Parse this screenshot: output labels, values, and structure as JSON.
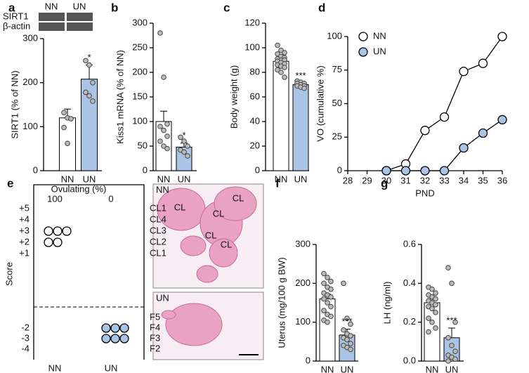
{
  "chart_data": [
    {
      "label": "a",
      "type": "bar",
      "y_label": "SIRT1 (% of NN)",
      "blot_labels": [
        "SIRT1",
        "β-actin"
      ],
      "blot_lanes": [
        "NN",
        "UN"
      ],
      "categories": [
        "NN",
        "UN"
      ],
      "values": [
        120,
        208
      ],
      "errors": [
        20,
        32
      ],
      "colors": [
        "#ffffff",
        "#a9c4e4"
      ],
      "points": [
        [
          132,
          120,
          118,
          98,
          62
        ],
        [
          250,
          240,
          200,
          178,
          170,
          158
        ]
      ],
      "significance": [
        null,
        "*"
      ],
      "ylim": [
        0,
        300
      ],
      "yticks": [
        0,
        100,
        200,
        300
      ]
    },
    {
      "label": "b",
      "type": "bar",
      "y_label": "Kiss1 mRNA (% of NN)",
      "categories": [
        "NN",
        "UN"
      ],
      "values": [
        100,
        48
      ],
      "errors": [
        21,
        8
      ],
      "colors": [
        "#ffffff",
        "#a9c4e4"
      ],
      "points": [
        [
          280,
          190,
          95,
          90,
          82,
          70,
          60,
          50,
          45
        ],
        [
          68,
          60,
          50,
          42,
          38,
          30
        ]
      ],
      "significance": [
        null,
        "*"
      ],
      "ylim": [
        0,
        300
      ],
      "yticks": [
        0,
        50,
        100,
        150,
        200,
        250,
        300
      ]
    },
    {
      "label": "c",
      "type": "bar",
      "y_label": "Body weight (g)",
      "categories": [
        "NN",
        "UN"
      ],
      "values": [
        89,
        70
      ],
      "errors": [
        2,
        1
      ],
      "colors": [
        "#ffffff",
        "#a9c4e4"
      ],
      "points": [
        [
          102,
          98,
          96,
          95,
          93,
          92,
          91,
          90,
          90,
          89,
          88,
          87,
          86,
          85,
          84,
          82,
          80,
          76
        ],
        [
          73,
          72,
          71,
          71,
          70,
          69,
          69,
          68,
          67
        ]
      ],
      "significance": [
        null,
        "***"
      ],
      "ylim": [
        0,
        120
      ],
      "yticks": [
        0,
        20,
        40,
        60,
        80,
        100,
        120
      ]
    },
    {
      "label": "d",
      "type": "line",
      "y_label": "VO (cumulative %)",
      "x_label": "PND",
      "legend": "upper left",
      "x": [
        30,
        31,
        32,
        33,
        34,
        35,
        36
      ],
      "series": [
        {
          "name": "NN",
          "color": "#ffffff",
          "values": [
            0,
            5,
            30,
            40,
            74,
            80,
            100
          ]
        },
        {
          "name": "UN",
          "color": "#a9c4e4",
          "values": [
            0,
            0,
            0,
            0,
            17,
            28,
            38
          ]
        }
      ],
      "xlim": [
        28,
        36
      ],
      "xticks": [
        28,
        29,
        30,
        31,
        32,
        33,
        34,
        35,
        36
      ],
      "ylim": [
        0,
        100
      ],
      "yticks": [
        0,
        25,
        50,
        75,
        100
      ]
    },
    {
      "label": "f",
      "type": "bar",
      "y_label": "Uterus (mg/100 g BW)",
      "categories": [
        "NN",
        "UN"
      ],
      "values": [
        160,
        67
      ],
      "errors": [
        12,
        15
      ],
      "colors": [
        "#ffffff",
        "#a9c4e4"
      ],
      "points": [
        [
          225,
          215,
          205,
          200,
          190,
          185,
          175,
          170,
          165,
          160,
          150,
          140,
          130,
          120,
          115,
          105,
          100
        ],
        [
          200,
          110,
          95,
          80,
          70,
          65,
          60,
          55,
          45,
          40,
          35,
          30
        ]
      ],
      "significance": [
        null,
        "***"
      ],
      "ylim": [
        0,
        300
      ],
      "yticks": [
        0,
        100,
        200,
        300
      ]
    },
    {
      "label": "g",
      "type": "bar",
      "y_label": "LH (ng/ml)",
      "categories": [
        "NN",
        "UN"
      ],
      "values": [
        0.3,
        0.12
      ],
      "errors": [
        0.02,
        0.05
      ],
      "colors": [
        "#ffffff",
        "#a9c4e4"
      ],
      "points": [
        [
          0.38,
          0.37,
          0.35,
          0.34,
          0.33,
          0.32,
          0.31,
          0.3,
          0.29,
          0.28,
          0.27,
          0.25,
          0.22,
          0.2,
          0.17,
          0.15
        ],
        [
          0.48,
          0.4,
          0.2,
          0.12,
          0.08,
          0.05,
          0.03,
          0.02,
          0.01,
          0
        ]
      ],
      "significance": [
        null,
        "***"
      ],
      "ylim": [
        0,
        0.6
      ],
      "yticks": [
        {
          "value": 0,
          "label": "0.0"
        },
        0.2,
        0.4,
        0.6
      ]
    }
  ],
  "panel_e": {
    "label": "e",
    "y_label": "Score",
    "header": "Ovulating (%)",
    "header_values": [
      "100",
      "0"
    ],
    "score_labels_top": [
      "+5",
      "+4",
      "+3",
      "+2",
      "+1"
    ],
    "score_labels_bottom": [
      "-2",
      "-3",
      "-4"
    ],
    "stage_labels_top": [
      "CL1",
      "CL4",
      "CL3",
      "CL2",
      "CL1"
    ],
    "stage_labels_bottom": [
      "F5",
      "F4",
      "F3",
      "F2"
    ],
    "groups": [
      "NN",
      "UN"
    ],
    "nn_scores": [
      3,
      3,
      3,
      2,
      2
    ],
    "un_scores": [
      -2,
      -2,
      -2,
      -3,
      -3,
      -3
    ],
    "image_labels": [
      "NN",
      "UN"
    ],
    "cl_labels": [
      "CL",
      "CL",
      "CL",
      "CL",
      "CL"
    ]
  }
}
